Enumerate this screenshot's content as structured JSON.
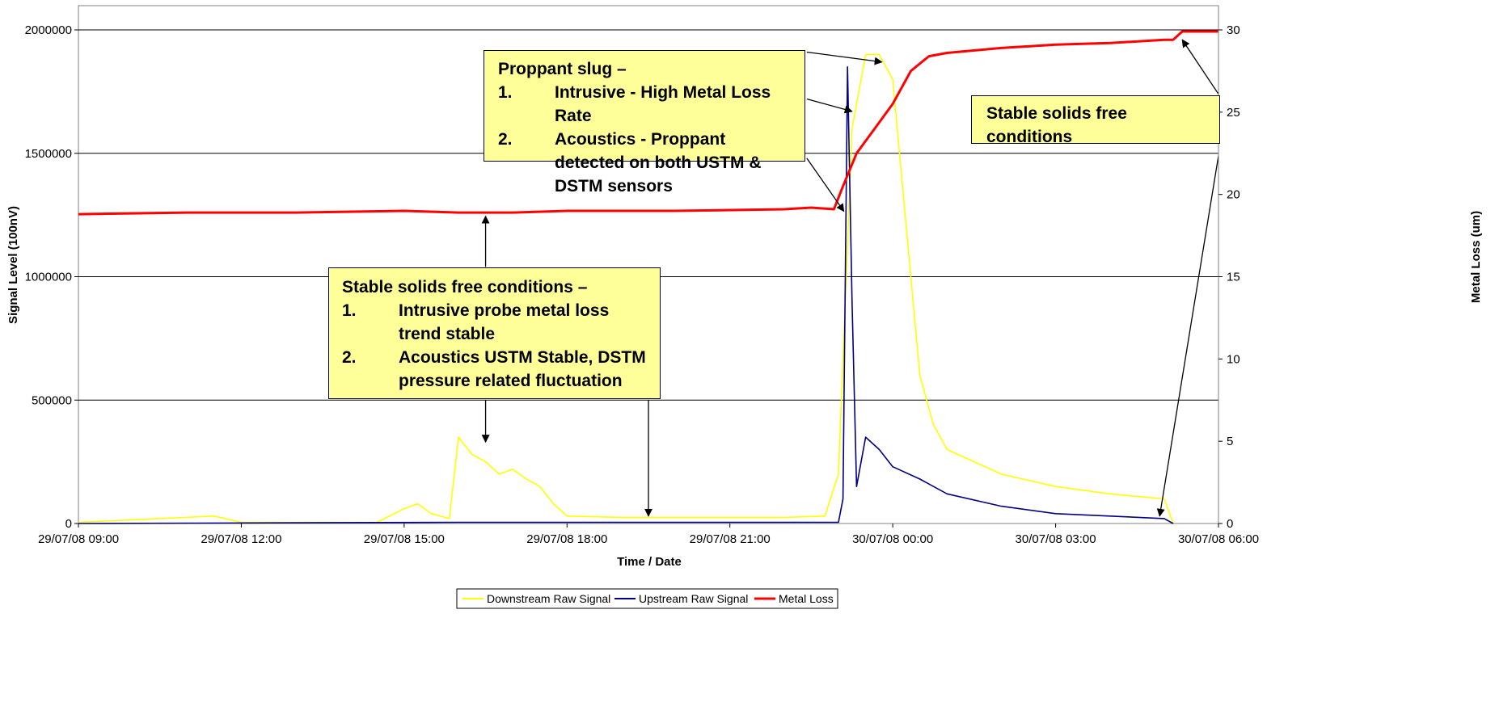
{
  "chart_data": {
    "type": "line",
    "xlabel": "Time / Date",
    "ylabel": "Signal Level (100nV)",
    "y2label": "Metal Loss (um)",
    "xlim": [
      "29/07/08 09:00",
      "30/07/08 06:00"
    ],
    "ylim": [
      0,
      2000000
    ],
    "y2lim": [
      0,
      30
    ],
    "x_ticks": [
      "29/07/08 09:00",
      "29/07/08 12:00",
      "29/07/08 15:00",
      "29/07/08 18:00",
      "29/07/08 21:00",
      "30/07/08 00:00",
      "30/07/08 03:00",
      "30/07/08 06:00"
    ],
    "y_ticks": [
      "0",
      "500000",
      "1000000",
      "1500000",
      "2000000"
    ],
    "y2_ticks": [
      "0",
      "5",
      "10",
      "15",
      "20",
      "25",
      "30"
    ],
    "grid": "horizontal",
    "legend_position": "bottom",
    "series": [
      {
        "name": "Downstream Raw Signal",
        "color": "#ffff00",
        "axis": "left",
        "x": [
          "29/07/08 09:00",
          "29/07/08 10:00",
          "29/07/08 11:30",
          "29/07/08 12:00",
          "29/07/08 14:30",
          "29/07/08 15:00",
          "29/07/08 15:15",
          "29/07/08 15:30",
          "29/07/08 15:50",
          "29/07/08 16:00",
          "29/07/08 16:15",
          "29/07/08 16:30",
          "29/07/08 16:45",
          "29/07/08 17:00",
          "29/07/08 17:15",
          "29/07/08 17:30",
          "29/07/08 17:45",
          "29/07/08 18:00",
          "29/07/08 19:00",
          "29/07/08 20:00",
          "29/07/08 21:00",
          "29/07/08 22:00",
          "29/07/08 22:45",
          "29/07/08 23:00",
          "29/07/08 23:15",
          "29/07/08 23:30",
          "29/07/08 23:45",
          "30/07/08 00:00",
          "30/07/08 00:15",
          "30/07/08 00:30",
          "30/07/08 00:45",
          "30/07/08 01:00",
          "30/07/08 02:00",
          "30/07/08 03:00",
          "30/07/08 04:00",
          "30/07/08 05:00",
          "30/07/08 05:10"
        ],
        "y": [
          5000,
          15000,
          30000,
          5000,
          5000,
          60000,
          80000,
          40000,
          20000,
          350000,
          280000,
          250000,
          200000,
          220000,
          180000,
          150000,
          80000,
          30000,
          25000,
          25000,
          25000,
          25000,
          30000,
          200000,
          1600000,
          1900000,
          1900000,
          1800000,
          1200000,
          600000,
          400000,
          300000,
          200000,
          150000,
          120000,
          100000,
          0
        ]
      },
      {
        "name": "Upstream Raw Signal",
        "color": "#000080",
        "axis": "left",
        "x": [
          "29/07/08 09:00",
          "29/07/08 16:00",
          "29/07/08 23:00",
          "29/07/08 23:05",
          "29/07/08 23:10",
          "29/07/08 23:15",
          "29/07/08 23:20",
          "29/07/08 23:30",
          "29/07/08 23:45",
          "30/07/08 00:00",
          "30/07/08 00:30",
          "30/07/08 01:00",
          "30/07/08 02:00",
          "30/07/08 03:00",
          "30/07/08 04:00",
          "30/07/08 05:00",
          "30/07/08 05:10"
        ],
        "y": [
          0,
          5000,
          5000,
          100000,
          1850000,
          900000,
          150000,
          350000,
          300000,
          230000,
          180000,
          120000,
          70000,
          40000,
          30000,
          20000,
          0
        ]
      },
      {
        "name": "Metal Loss",
        "color": "#ff0000",
        "axis": "right",
        "x": [
          "29/07/08 09:00",
          "29/07/08 11:00",
          "29/07/08 13:00",
          "29/07/08 15:00",
          "29/07/08 16:00",
          "29/07/08 17:00",
          "29/07/08 18:00",
          "29/07/08 20:00",
          "29/07/08 22:00",
          "29/07/08 22:30",
          "29/07/08 22:55",
          "29/07/08 23:05",
          "29/07/08 23:20",
          "29/07/08 23:40",
          "30/07/08 00:00",
          "30/07/08 00:20",
          "30/07/08 00:40",
          "30/07/08 01:00",
          "30/07/08 02:00",
          "30/07/08 03:00",
          "30/07/08 04:00",
          "30/07/08 05:00",
          "30/07/08 05:10",
          "30/07/08 05:20",
          "30/07/08 06:00"
        ],
        "y": [
          18.8,
          18.9,
          18.9,
          19.0,
          18.9,
          18.9,
          19.0,
          19.0,
          19.1,
          19.2,
          19.1,
          20.5,
          22.5,
          24.0,
          25.5,
          27.5,
          28.4,
          28.6,
          28.9,
          29.1,
          29.2,
          29.4,
          29.4,
          29.9,
          29.9
        ]
      }
    ],
    "annotations": {
      "proppant": {
        "title": "Proppant slug –",
        "items": [
          {
            "num": "1.",
            "text": "Intrusive - High Metal Loss Rate"
          },
          {
            "num": "2.",
            "text": "Acoustics - Proppant detected on both USTM & DSTM sensors"
          }
        ]
      },
      "stable_left": {
        "title": "Stable solids free conditions –",
        "items": [
          {
            "num": "1.",
            "text": "Intrusive probe metal loss trend stable"
          },
          {
            "num": "2.",
            "text": "Acoustics USTM Stable, DSTM pressure related fluctuation"
          }
        ]
      },
      "stable_right": {
        "title": "Stable solids free conditions"
      }
    }
  }
}
